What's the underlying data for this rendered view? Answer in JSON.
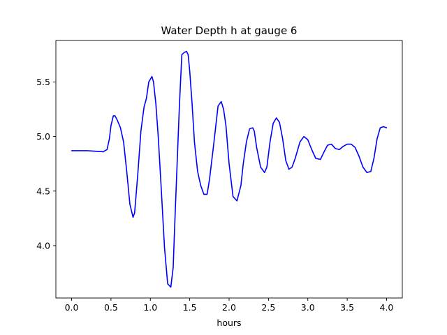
{
  "chart_data": {
    "type": "line",
    "title": "Water Depth h at gauge 6",
    "xlabel": "hours",
    "ylabel": "",
    "xlim": [
      -0.2,
      4.2
    ],
    "ylim": [
      3.52,
      5.88
    ],
    "xticks": [
      "0.0",
      "0.5",
      "1.0",
      "1.5",
      "2.0",
      "2.5",
      "3.0",
      "3.5",
      "4.0"
    ],
    "yticks": [
      "4.0",
      "4.5",
      "5.0",
      "5.5"
    ],
    "grid": false,
    "series": [
      {
        "color": "#0000ff",
        "x": [
          0.0,
          0.1,
          0.2,
          0.3,
          0.4,
          0.45,
          0.48,
          0.5,
          0.53,
          0.55,
          0.58,
          0.62,
          0.66,
          0.7,
          0.74,
          0.78,
          0.8,
          0.84,
          0.88,
          0.92,
          0.95,
          0.98,
          1.02,
          1.04,
          1.07,
          1.1,
          1.14,
          1.18,
          1.22,
          1.26,
          1.29,
          1.31,
          1.34,
          1.37,
          1.4,
          1.43,
          1.46,
          1.48,
          1.5,
          1.53,
          1.56,
          1.6,
          1.64,
          1.68,
          1.72,
          1.75,
          1.8,
          1.86,
          1.9,
          1.93,
          1.96,
          2.0,
          2.05,
          2.1,
          2.15,
          2.18,
          2.22,
          2.26,
          2.3,
          2.32,
          2.35,
          2.4,
          2.45,
          2.48,
          2.52,
          2.56,
          2.6,
          2.64,
          2.68,
          2.72,
          2.76,
          2.8,
          2.84,
          2.9,
          2.95,
          3.0,
          3.05,
          3.1,
          3.16,
          3.2,
          3.25,
          3.3,
          3.35,
          3.4,
          3.45,
          3.5,
          3.55,
          3.6,
          3.65,
          3.7,
          3.75,
          3.8,
          3.84,
          3.88,
          3.92,
          3.96,
          4.0
        ],
        "y": [
          4.87,
          4.87,
          4.87,
          4.865,
          4.86,
          4.88,
          4.98,
          5.1,
          5.19,
          5.19,
          5.15,
          5.08,
          4.95,
          4.68,
          4.38,
          4.26,
          4.3,
          4.65,
          5.05,
          5.27,
          5.35,
          5.5,
          5.55,
          5.5,
          5.3,
          5.0,
          4.5,
          3.98,
          3.65,
          3.62,
          3.8,
          4.2,
          4.75,
          5.3,
          5.75,
          5.77,
          5.78,
          5.75,
          5.6,
          5.3,
          4.95,
          4.68,
          4.55,
          4.47,
          4.47,
          4.6,
          4.9,
          5.28,
          5.32,
          5.25,
          5.1,
          4.75,
          4.45,
          4.41,
          4.55,
          4.75,
          4.95,
          5.07,
          5.08,
          5.05,
          4.9,
          4.72,
          4.67,
          4.72,
          4.95,
          5.12,
          5.17,
          5.13,
          4.98,
          4.78,
          4.7,
          4.72,
          4.8,
          4.95,
          5.0,
          4.97,
          4.88,
          4.8,
          4.79,
          4.85,
          4.92,
          4.93,
          4.89,
          4.88,
          4.91,
          4.93,
          4.93,
          4.9,
          4.82,
          4.72,
          4.67,
          4.68,
          4.8,
          4.98,
          5.08,
          5.09,
          5.08
        ]
      }
    ]
  }
}
